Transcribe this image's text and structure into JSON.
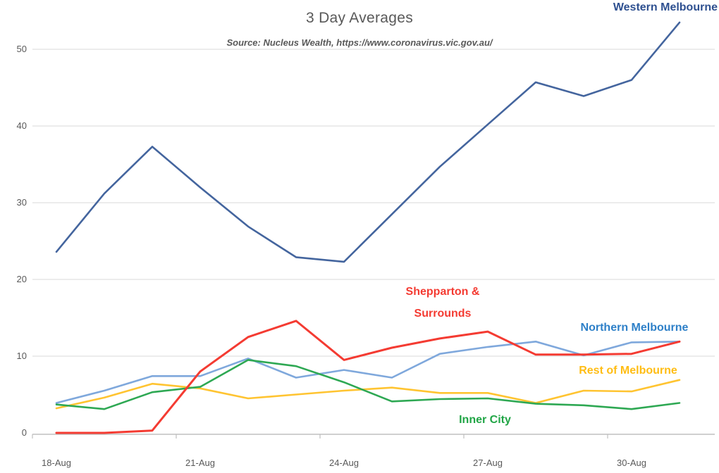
{
  "chart_data": {
    "type": "line",
    "title": "3 Day Averages",
    "subtitle": "Source: Nucleus Wealth, https://www.coronavirus.vic.gov.au/",
    "categories": [
      "18-Aug",
      "19-Aug",
      "20-Aug",
      "21-Aug",
      "22-Aug",
      "23-Aug",
      "24-Aug",
      "25-Aug",
      "26-Aug",
      "27-Aug",
      "28-Aug",
      "29-Aug",
      "30-Aug",
      "31-Aug"
    ],
    "x_axis": {
      "tick_labels": [
        "18-Aug",
        "21-Aug",
        "24-Aug",
        "27-Aug",
        "30-Aug"
      ],
      "tick_label_indices": [
        0,
        3,
        6,
        9,
        12
      ]
    },
    "y_axis": {
      "ticks": [
        0,
        10,
        20,
        30,
        40,
        50
      ],
      "range": [
        0,
        55
      ],
      "gridlines": true
    },
    "legend_position": "inline-labels-next-to-lines",
    "series": [
      {
        "name": "Western Melbourne",
        "color": "#44659E",
        "label_color": "#2E5090",
        "stroke_width": 2.6,
        "values": [
          23.6,
          31.2,
          37.3,
          32.0,
          26.9,
          22.9,
          22.3,
          28.5,
          34.7,
          40.2,
          45.7,
          43.9,
          46.0,
          53.5
        ]
      },
      {
        "name": "Northern Melbourne",
        "color": "#7FA8DC",
        "label_color": "#2E80C8",
        "stroke_width": 2.6,
        "values": [
          3.9,
          5.5,
          7.4,
          7.4,
          9.7,
          7.2,
          8.2,
          7.2,
          10.3,
          11.2,
          11.9,
          10.1,
          11.8,
          11.9
        ]
      },
      {
        "name": "Rest of Melbourne",
        "color": "#FFC431",
        "label_color": "#FFBD14",
        "stroke_width": 2.6,
        "values": [
          3.2,
          4.6,
          6.4,
          5.8,
          4.5,
          5.0,
          5.5,
          5.9,
          5.2,
          5.2,
          3.9,
          5.5,
          5.4,
          6.9
        ]
      },
      {
        "name": "Inner City",
        "color": "#2EA853",
        "label_color": "#21A546",
        "stroke_width": 2.6,
        "values": [
          3.7,
          3.1,
          5.3,
          6.0,
          9.5,
          8.7,
          6.6,
          4.1,
          4.4,
          4.5,
          3.8,
          3.6,
          3.1,
          3.9
        ]
      },
      {
        "name": "Shepparton & Surrounds",
        "color": "#F43B32",
        "label_color": "#F43B32",
        "stroke_width": 3,
        "values": [
          0,
          0,
          0.3,
          8.0,
          12.5,
          14.6,
          9.5,
          11.1,
          12.3,
          13.2,
          10.2,
          10.2,
          10.3,
          11.9
        ]
      }
    ]
  },
  "colors": {
    "background": "#FFFFFF",
    "gridline": "#D9D9D9",
    "axis_line": "#BFBFBF",
    "axis_text": "#595959",
    "title_text": "#595959"
  }
}
